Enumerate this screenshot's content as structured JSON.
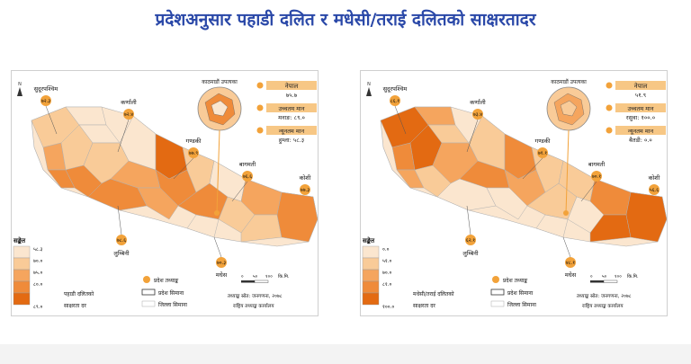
{
  "title": "प्रदेशअनुसार पहाडी दलित र मधेसी/तराई दलितको साक्षरतादर",
  "colors": {
    "title": "#2a48a8",
    "class1": "#fbe6cf",
    "class2": "#f9cb98",
    "class3": "#f5a55e",
    "class4": "#ef8b3a",
    "class5": "#e36a12",
    "label_bg": "#f7c785",
    "dot": "#f2a23a"
  },
  "maps": [
    {
      "panel_name": "hill-dalit",
      "kathmandu_label": "काठमाडौं उपत्यका",
      "nepal_label": "नेपाल",
      "nepal_value": "७५.७",
      "highest_label": "उच्चतम मान",
      "highest_value": "मनाङ: ८९.०",
      "lowest_label": "न्यूनतम मान",
      "lowest_value": "हुम्ला: ५८.३",
      "provinces": [
        {
          "name": "सुदूरपश्चिम",
          "value": "७२.३"
        },
        {
          "name": "कर्णाली",
          "value": "७२.४"
        },
        {
          "name": "गण्डकी",
          "value": "७७.९"
        },
        {
          "name": "बागमती",
          "value": "७६.६"
        },
        {
          "name": "कोशी",
          "value": "७७.३"
        },
        {
          "name": "लुम्बिनी",
          "value": "७८.६"
        },
        {
          "name": "मधेस",
          "value": "७०.३"
        }
      ],
      "legend_title": "सङ्केत",
      "legend_classes": [
        "५८.३",
        "७०.०",
        "७५.०",
        "८०.०",
        "८९.०"
      ],
      "legend_caption_line1": "पहाडी दलितको",
      "legend_caption_line2": "साक्षरता दर",
      "dot_label": "प्रदेश तथ्याङ्क",
      "province_boundary": "प्रदेश सिमाना",
      "district_boundary": "जिल्ला सिमाना",
      "scale": [
        "०",
        "५०",
        "१००",
        "कि.मि."
      ],
      "source": "तथ्याङ्क स्रोत: जनगणना, २०७८",
      "office": "राष्ट्रिय तथ्याङ्क कार्यालय"
    },
    {
      "panel_name": "madhesi-dalit",
      "kathmandu_label": "काठमाडौं उपत्यका",
      "nepal_label": "नेपाल",
      "nepal_value": "५१.९",
      "highest_label": "उच्चतम मान",
      "highest_value": "रसुवा: १००.०",
      "lowest_label": "न्यूनतम मान",
      "lowest_value": "बैतडी: ०.०",
      "provinces": [
        {
          "name": "सुदूरपश्चिम",
          "value": "८६.१"
        },
        {
          "name": "कर्णाली",
          "value": "७३.४"
        },
        {
          "name": "गण्डकी",
          "value": "७१.१"
        },
        {
          "name": "बागमती",
          "value": "७०.१"
        },
        {
          "name": "कोशी",
          "value": "५६.६"
        },
        {
          "name": "लुम्बिनी",
          "value": "६२.१"
        },
        {
          "name": "मधेस",
          "value": "४८.१"
        }
      ],
      "legend_title": "सङ्केत",
      "legend_classes": [
        "०.०",
        "५१.०",
        "७०.०",
        "८१.०",
        "१००.०"
      ],
      "legend_caption_line1": "मधेसी/तराई दलितको",
      "legend_caption_line2": "साक्षरता दर",
      "dot_label": "प्रदेश तथ्याङ्क",
      "province_boundary": "प्रदेश सिमाना",
      "district_boundary": "जिल्ला सिमाना",
      "scale": [
        "०",
        "५०",
        "१००",
        "कि.मि."
      ],
      "source": "तथ्याङ्क स्रोत: जनगणना, २०७८",
      "office": "राष्ट्रिय तथ्याङ्क कार्यालय"
    }
  ]
}
